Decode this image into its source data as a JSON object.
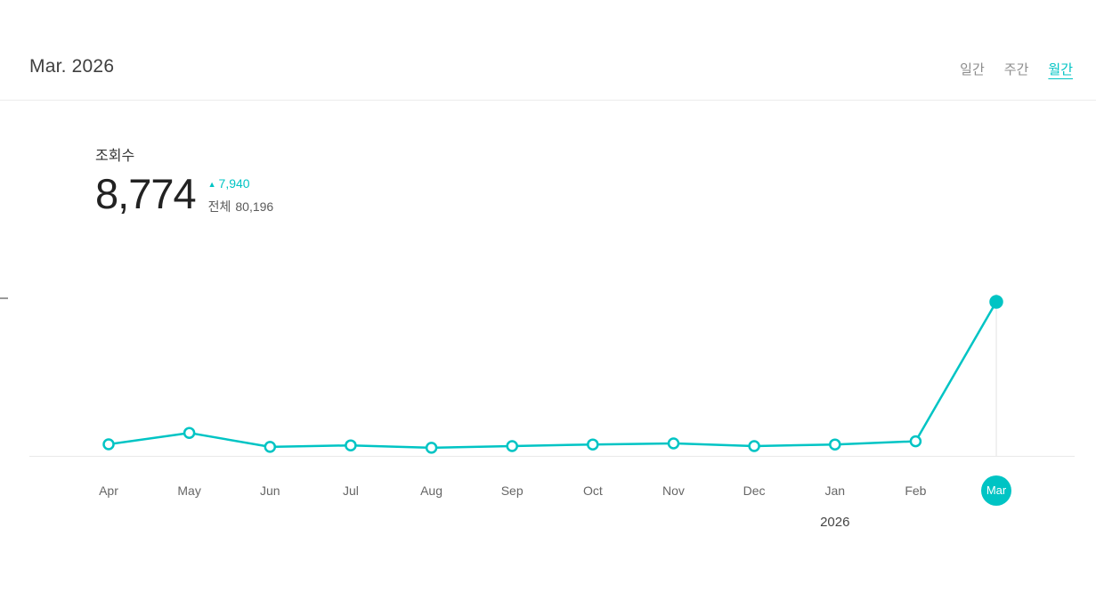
{
  "header": {
    "title": "Mar. 2026",
    "tabs": [
      {
        "label": "일간",
        "active": false
      },
      {
        "label": "주간",
        "active": false
      },
      {
        "label": "월간",
        "active": true
      }
    ]
  },
  "stats": {
    "metric_label": "조회수",
    "value": "8,774",
    "delta_icon": "▲",
    "delta": "7,940",
    "total_label": "전체",
    "total": "80,196"
  },
  "chart_data": {
    "type": "line",
    "title": "조회수 월간 추이",
    "categories": [
      "Apr",
      "May",
      "Jun",
      "Jul",
      "Aug",
      "Sep",
      "Oct",
      "Nov",
      "Dec",
      "Jan",
      "Feb",
      "Mar"
    ],
    "values": [
      660,
      1310,
      510,
      600,
      460,
      560,
      650,
      710,
      560,
      650,
      834,
      8774
    ],
    "highlight_index": 11,
    "highlight_label": "Mar",
    "year_label": "2026",
    "year_label_index": 9,
    "line_color": "#00c4c4",
    "point_style": "open-circle, current point filled",
    "xlabel": "",
    "ylabel": "",
    "ylim": [
      0,
      9500
    ],
    "grid": "single vertical gridline at current month",
    "legend": "none"
  },
  "colors": {
    "accent": "#00c4c4",
    "text_dark": "#333333",
    "text_gray": "#8c8c8c",
    "divider": "#ececec",
    "axis_line": "#e9e9e9",
    "gridline": "#e4e4e4"
  }
}
